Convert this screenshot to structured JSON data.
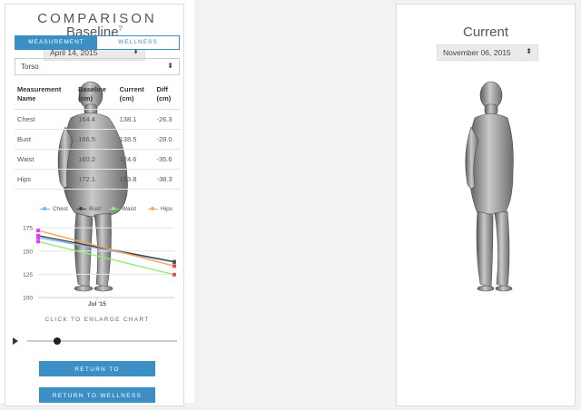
{
  "baseline": {
    "title": "Baseline",
    "info_mark": "?",
    "date": "April 14, 2015"
  },
  "current": {
    "title": "Current",
    "date": "November 06, 2015"
  },
  "comparison": {
    "title": "COMPARISON",
    "tabs": [
      {
        "label": "MEASUREMENT",
        "active": true
      },
      {
        "label": "WELLNESS",
        "active": false
      }
    ],
    "region": "Torso",
    "table": {
      "headers": [
        [
          "Measurement",
          "Name"
        ],
        [
          "Baseline",
          "(cm)"
        ],
        [
          "Current",
          "(cm)"
        ],
        [
          "Diff",
          "(cm)"
        ]
      ],
      "rows": [
        [
          "Chest",
          "164.4",
          "138.1",
          "-26.3"
        ],
        [
          "Bust",
          "166.5",
          "138.5",
          "-28.0"
        ],
        [
          "Waist",
          "160.2",
          "124.6",
          "-35.6"
        ],
        [
          "Hips",
          "172.1",
          "133.8",
          "-38.3"
        ]
      ]
    },
    "enlarge_label": "CLICK TO ENLARGE CHART",
    "timeline_progress": 0.2,
    "buttons": {
      "measurements": "RETURN TO MEASUREMENTS",
      "wellness": "RETURN TO WELLNESS"
    }
  },
  "chart_data": {
    "type": "line",
    "x": [
      "Apr 14, 2015",
      "Nov 06, 2015"
    ],
    "xtick_labels": [
      "Jul '15"
    ],
    "ytick_labels": [
      "100",
      "125",
      "150",
      "175"
    ],
    "ylim": [
      100,
      180
    ],
    "grid": true,
    "legend_position": "top",
    "series": [
      {
        "name": "Chest",
        "values": [
          164.4,
          138.1
        ],
        "color": "#7cb5ec"
      },
      {
        "name": "Bust",
        "values": [
          166.5,
          138.5
        ],
        "color": "#434348"
      },
      {
        "name": "Waist",
        "values": [
          160.2,
          124.6
        ],
        "color": "#90ed7d"
      },
      {
        "name": "Hips",
        "values": [
          172.1,
          133.8
        ],
        "color": "#f7a35c"
      }
    ],
    "marker_colors": [
      "#e040fb",
      "#e040fb",
      "#e040fb",
      "#e040fb"
    ],
    "end_marker_colors": [
      "#5a6ea8",
      "#555555",
      "#d9574f",
      "#d9574f"
    ]
  }
}
